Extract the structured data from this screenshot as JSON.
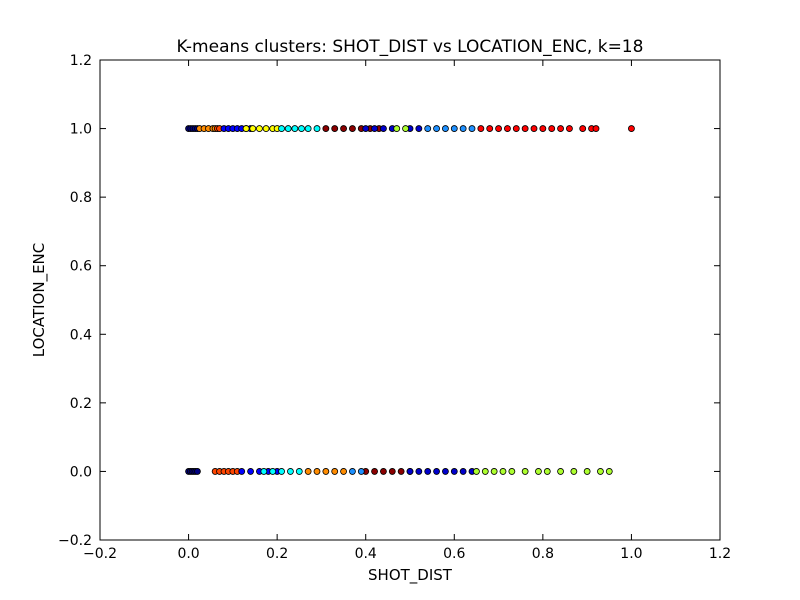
{
  "chart_data": {
    "type": "scatter",
    "title": "K-means clusters: SHOT_DIST vs LOCATION_ENC, k=18",
    "xlabel": "SHOT_DIST",
    "ylabel": "LOCATION_ENC",
    "xlim": [
      -0.2,
      1.2
    ],
    "ylim": [
      -0.2,
      1.2
    ],
    "x_ticks": [
      "−0.2",
      "0.0",
      "0.2",
      "0.4",
      "0.6",
      "0.8",
      "1.0",
      "1.2"
    ],
    "y_ticks": [
      "−0.2",
      "0.0",
      "0.2",
      "0.4",
      "0.6",
      "0.8",
      "1.0",
      "1.2"
    ],
    "grid": false,
    "legend": "none",
    "series": [
      {
        "color": "#000080",
        "points": [
          [
            0.0,
            1
          ],
          [
            0.005,
            1
          ],
          [
            0.01,
            1
          ],
          [
            0.015,
            1
          ],
          [
            0.02,
            1
          ],
          [
            0.0,
            0
          ],
          [
            0.004,
            0
          ],
          [
            0.008,
            0
          ],
          [
            0.012,
            0
          ],
          [
            0.016,
            0
          ],
          [
            0.02,
            0
          ]
        ]
      },
      {
        "color": "#ff8c00",
        "points": [
          [
            0.025,
            1
          ],
          [
            0.035,
            1
          ],
          [
            0.045,
            1
          ],
          [
            0.055,
            1
          ],
          [
            0.06,
            1
          ],
          [
            0.27,
            0
          ],
          [
            0.29,
            0
          ],
          [
            0.31,
            0
          ],
          [
            0.33,
            0
          ],
          [
            0.35,
            0
          ]
        ]
      },
      {
        "color": "#ff4500",
        "points": [
          [
            0.065,
            1
          ],
          [
            0.07,
            1
          ],
          [
            0.06,
            0
          ],
          [
            0.07,
            0
          ],
          [
            0.08,
            0
          ],
          [
            0.09,
            0
          ],
          [
            0.1,
            0
          ],
          [
            0.11,
            0
          ]
        ]
      },
      {
        "color": "#0000ff",
        "points": [
          [
            0.08,
            1
          ],
          [
            0.09,
            1
          ],
          [
            0.1,
            1
          ],
          [
            0.11,
            1
          ],
          [
            0.12,
            1
          ],
          [
            0.13,
            1
          ],
          [
            0.14,
            1
          ],
          [
            0.12,
            0
          ],
          [
            0.14,
            0
          ],
          [
            0.16,
            0
          ],
          [
            0.18,
            0
          ],
          [
            0.2,
            0
          ]
        ]
      },
      {
        "color": "#ffff00",
        "points": [
          [
            0.13,
            1
          ],
          [
            0.145,
            1
          ],
          [
            0.16,
            1
          ],
          [
            0.175,
            1
          ],
          [
            0.19,
            1
          ],
          [
            0.2,
            1
          ]
        ]
      },
      {
        "color": "#00ffff",
        "points": [
          [
            0.21,
            1
          ],
          [
            0.225,
            1
          ],
          [
            0.24,
            1
          ],
          [
            0.255,
            1
          ],
          [
            0.27,
            1
          ],
          [
            0.29,
            1
          ],
          [
            0.17,
            0
          ],
          [
            0.19,
            0
          ],
          [
            0.21,
            0
          ],
          [
            0.23,
            0
          ],
          [
            0.25,
            0
          ]
        ]
      },
      {
        "color": "#8b0000",
        "points": [
          [
            0.31,
            1
          ],
          [
            0.33,
            1
          ],
          [
            0.35,
            1
          ],
          [
            0.37,
            1
          ],
          [
            0.39,
            1
          ],
          [
            0.41,
            1
          ],
          [
            0.43,
            1
          ],
          [
            0.4,
            0
          ],
          [
            0.42,
            0
          ],
          [
            0.44,
            0
          ],
          [
            0.46,
            0
          ],
          [
            0.48,
            0
          ],
          [
            0.5,
            0
          ]
        ]
      },
      {
        "color": "#0000cd",
        "points": [
          [
            0.4,
            1
          ],
          [
            0.42,
            1
          ],
          [
            0.44,
            1
          ],
          [
            0.46,
            1
          ],
          [
            0.5,
            1
          ],
          [
            0.52,
            1
          ],
          [
            0.5,
            0
          ],
          [
            0.52,
            0
          ],
          [
            0.54,
            0
          ],
          [
            0.56,
            0
          ],
          [
            0.58,
            0
          ],
          [
            0.6,
            0
          ],
          [
            0.62,
            0
          ],
          [
            0.64,
            0
          ]
        ]
      },
      {
        "color": "#adff2f",
        "points": [
          [
            0.47,
            1
          ],
          [
            0.49,
            1
          ],
          [
            0.65,
            0
          ],
          [
            0.67,
            0
          ],
          [
            0.69,
            0
          ],
          [
            0.71,
            0
          ],
          [
            0.73,
            0
          ],
          [
            0.76,
            0
          ],
          [
            0.79,
            0
          ],
          [
            0.81,
            0
          ],
          [
            0.84,
            0
          ],
          [
            0.87,
            0
          ],
          [
            0.9,
            0
          ],
          [
            0.93,
            0
          ],
          [
            0.95,
            0
          ]
        ]
      },
      {
        "color": "#1e90ff",
        "points": [
          [
            0.54,
            1
          ],
          [
            0.56,
            1
          ],
          [
            0.58,
            1
          ],
          [
            0.6,
            1
          ],
          [
            0.62,
            1
          ],
          [
            0.64,
            1
          ],
          [
            0.37,
            0
          ],
          [
            0.39,
            0
          ]
        ]
      },
      {
        "color": "#ff0000",
        "points": [
          [
            0.66,
            1
          ],
          [
            0.68,
            1
          ],
          [
            0.7,
            1
          ],
          [
            0.72,
            1
          ],
          [
            0.74,
            1
          ],
          [
            0.76,
            1
          ],
          [
            0.78,
            1
          ],
          [
            0.8,
            1
          ],
          [
            0.82,
            1
          ],
          [
            0.84,
            1
          ],
          [
            0.86,
            1
          ],
          [
            0.89,
            1
          ],
          [
            0.91,
            1
          ],
          [
            0.92,
            1
          ],
          [
            1.0,
            1
          ]
        ]
      }
    ]
  }
}
